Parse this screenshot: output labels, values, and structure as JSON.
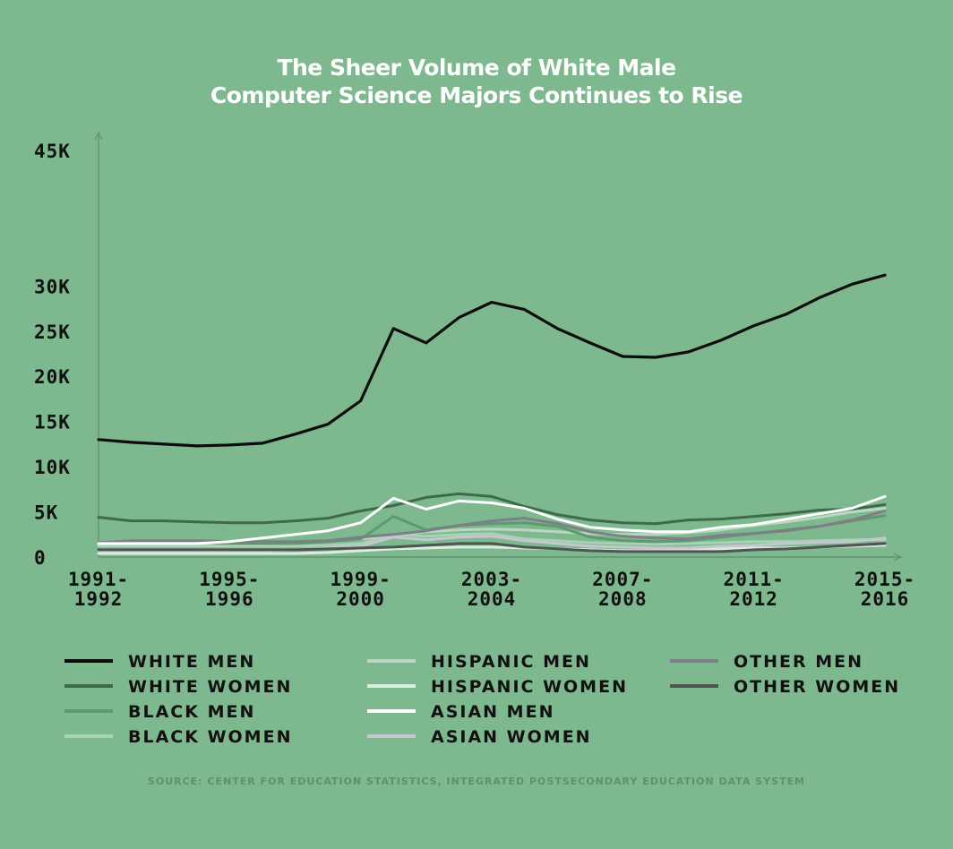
{
  "chart_data": {
    "type": "line",
    "title_line1": "The Sheer Volume of White Male",
    "title_line2": "Computer Science Majors Continues to Rise",
    "source": "SOURCE: CENTER FOR EDUCATION STATISTICS, INTEGRATED POSTSECONDARY EDUCATION DATA SYSTEM",
    "ylim": [
      0,
      45000
    ],
    "y_ticks": [
      {
        "value": 0,
        "label": "0"
      },
      {
        "value": 5000,
        "label": "5K"
      },
      {
        "value": 10000,
        "label": "10K"
      },
      {
        "value": 15000,
        "label": "15K"
      },
      {
        "value": 20000,
        "label": "20K"
      },
      {
        "value": 25000,
        "label": "25K"
      },
      {
        "value": 30000,
        "label": "30K"
      },
      {
        "value": 45000,
        "label": "45K"
      }
    ],
    "x": [
      "1991-1992",
      "1992-1993",
      "1993-1994",
      "1994-1995",
      "1995-1996",
      "1996-1997",
      "1997-1998",
      "1998-1999",
      "1999-2000",
      "2000-2001",
      "2001-2002",
      "2002-2003",
      "2003-2004",
      "2004-2005",
      "2005-2006",
      "2006-2007",
      "2007-2008",
      "2008-2009",
      "2009-2010",
      "2010-2011",
      "2011-2012",
      "2012-2013",
      "2013-2014",
      "2014-2015",
      "2015-2016"
    ],
    "x_ticks": [
      {
        "index": 0,
        "line1": "1991-",
        "line2": "1992"
      },
      {
        "index": 4,
        "line1": "1995-",
        "line2": "1996"
      },
      {
        "index": 8,
        "line1": "1999-",
        "line2": "2000"
      },
      {
        "index": 12,
        "line1": "2003-",
        "line2": "2004"
      },
      {
        "index": 16,
        "line1": "2007-",
        "line2": "2008"
      },
      {
        "index": 20,
        "line1": "2011-",
        "line2": "2012"
      },
      {
        "index": 24,
        "line1": "2015-",
        "line2": "2016"
      }
    ],
    "grid": false,
    "legend_position": "bottom",
    "series": [
      {
        "name": "WHITE MEN",
        "color": "#0d0d0d",
        "values": [
          13000,
          12700,
          12500,
          12300,
          12400,
          12600,
          13600,
          14700,
          17300,
          25300,
          23700,
          26500,
          28200,
          27400,
          25300,
          23700,
          22200,
          22100,
          22700,
          24000,
          25600,
          26900,
          28700,
          30200,
          31200
        ]
      },
      {
        "name": "WHITE WOMEN",
        "color": "#3c6a4a",
        "values": [
          4400,
          4000,
          4000,
          3900,
          3800,
          3800,
          4000,
          4300,
          5100,
          5700,
          6600,
          7000,
          6700,
          5600,
          4700,
          4100,
          3800,
          3700,
          4100,
          4200,
          4500,
          4800,
          5200,
          5300,
          5800
        ]
      },
      {
        "name": "BLACK MEN",
        "color": "#5e9a70",
        "values": [
          1600,
          1600,
          1600,
          1600,
          1500,
          1500,
          1500,
          1700,
          2000,
          4500,
          3000,
          3500,
          3700,
          3800,
          3400,
          2200,
          1800,
          1700,
          1800,
          2200,
          2600,
          3000,
          3400,
          4000,
          4600
        ]
      },
      {
        "name": "BLACK WOMEN",
        "color": "#a9d1b4",
        "values": [
          1200,
          1200,
          1200,
          1200,
          1200,
          1200,
          1200,
          1300,
          1500,
          2500,
          2300,
          2500,
          2600,
          2000,
          1800,
          1600,
          1500,
          1400,
          1500,
          1600,
          1700,
          1700,
          1800,
          1900,
          1900
        ]
      },
      {
        "name": "HISPANIC MEN",
        "color": "#b9d8c2",
        "values": [
          1400,
          1500,
          1500,
          1500,
          1500,
          1500,
          1600,
          1700,
          2000,
          2400,
          2800,
          3000,
          3100,
          3000,
          2800,
          2600,
          2500,
          2500,
          2700,
          3000,
          3500,
          3900,
          4400,
          5000,
          5400
        ]
      },
      {
        "name": "HISPANIC WOMEN",
        "color": "#dbeede",
        "values": [
          400,
          400,
          400,
          400,
          400,
          400,
          400,
          500,
          700,
          900,
          1000,
          1100,
          1100,
          1000,
          900,
          800,
          700,
          700,
          800,
          900,
          1000,
          1000,
          1100,
          1200,
          1300
        ]
      },
      {
        "name": "ASIAN MEN",
        "color": "#ffffff",
        "values": [
          1500,
          1500,
          1500,
          1500,
          1700,
          2100,
          2500,
          2900,
          3800,
          6500,
          5300,
          6200,
          6000,
          5400,
          4200,
          3300,
          3000,
          2800,
          2800,
          3300,
          3600,
          4200,
          4800,
          5400,
          6700
        ]
      },
      {
        "name": "ASIAN WOMEN",
        "color": "#c6c6cf",
        "values": [
          700,
          700,
          700,
          700,
          700,
          700,
          800,
          1000,
          1200,
          2200,
          1900,
          2200,
          2300,
          1800,
          1500,
          1200,
          1100,
          1000,
          1000,
          1200,
          1300,
          1500,
          1600,
          1700,
          2100
        ]
      },
      {
        "name": "OTHER MEN",
        "color": "#7e7e86",
        "values": [
          1600,
          1800,
          1800,
          1800,
          1700,
          1700,
          1700,
          1800,
          2200,
          2500,
          2900,
          3500,
          4000,
          4300,
          3700,
          2800,
          2300,
          2100,
          2000,
          2400,
          2600,
          2900,
          3400,
          4100,
          5100
        ]
      },
      {
        "name": "OTHER WOMEN",
        "color": "#4f5553",
        "values": [
          800,
          800,
          800,
          800,
          800,
          800,
          800,
          900,
          1000,
          1100,
          1300,
          1500,
          1500,
          1100,
          900,
          700,
          600,
          600,
          600,
          600,
          800,
          900,
          1100,
          1300,
          1500
        ]
      }
    ]
  }
}
